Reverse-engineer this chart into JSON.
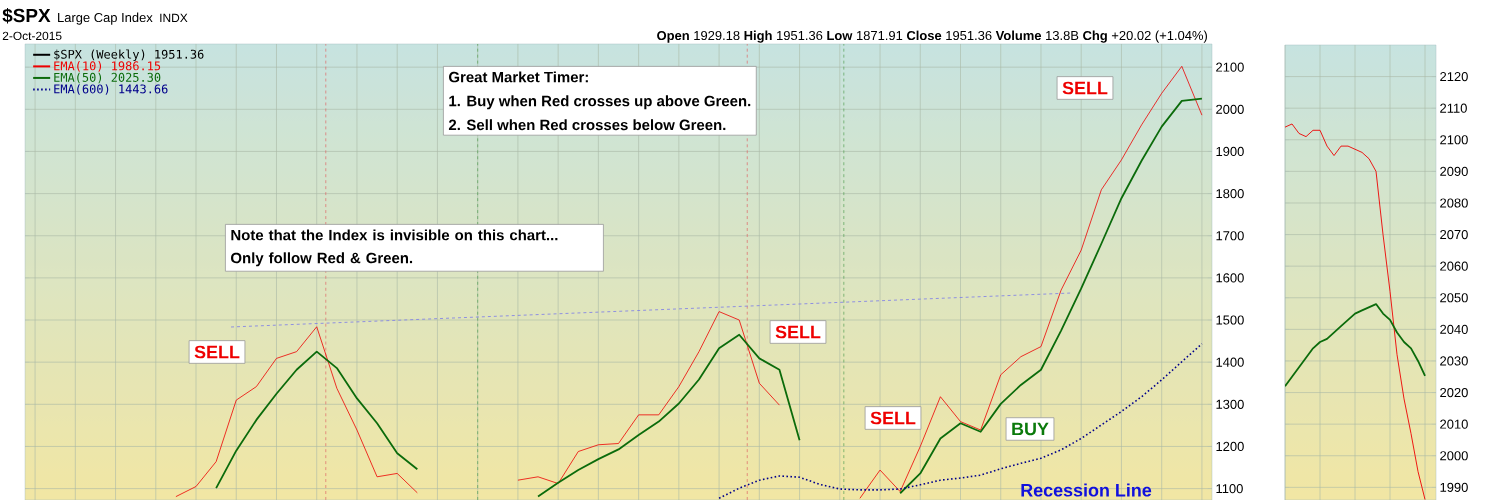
{
  "chart_data": [
    {
      "type": "line",
      "title": "$SPX",
      "subtitle": "Large Cap Index",
      "categories": [
        null,
        null,
        null,
        null,
        null,
        null,
        null,
        null,
        null,
        null,
        null,
        null,
        null,
        null,
        null,
        null,
        null,
        null,
        null,
        null,
        null,
        null,
        null,
        null,
        null,
        null,
        null,
        null,
        null,
        null,
        null,
        null,
        null,
        null,
        null,
        null,
        null,
        null,
        null,
        null,
        null,
        null,
        null,
        null,
        null,
        null,
        null,
        null,
        null,
        null,
        null,
        null,
        null,
        null,
        null,
        null,
        null,
        null,
        null
      ],
      "series": [
        {
          "name": "EMA(10) 1986.15",
          "color": "#ee0000",
          "values": [
            null,
            null,
            null,
            null,
            null,
            null,
            null,
            1081,
            1105,
            1164,
            1310,
            1342,
            1409,
            1425,
            1484,
            1338,
            1239,
            1128,
            1136,
            1090,
            null,
            null,
            null,
            null,
            1120,
            1128,
            1112,
            1188,
            1204,
            1207,
            1275,
            1275,
            1342,
            1425,
            1520,
            1500,
            1350,
            1298,
            null,
            null,
            null,
            1077,
            1144,
            1093,
            1200,
            1318,
            1259,
            1239,
            1370,
            1413,
            1437,
            1571,
            1666,
            1809,
            1880,
            1963,
            2038,
            2102,
            1986.15
          ]
        },
        {
          "name": "EMA(50) 2025.30",
          "color": "#0b6b0b",
          "values": [
            null,
            null,
            null,
            null,
            null,
            null,
            null,
            null,
            null,
            1101,
            1190,
            1263,
            1325,
            1382,
            1425,
            1386,
            1314,
            1255,
            1184,
            1146,
            null,
            null,
            null,
            null,
            null,
            1081,
            1114,
            1144,
            1170,
            1193,
            1227,
            1259,
            1302,
            1359,
            1433,
            1465,
            1409,
            1382,
            1215,
            null,
            null,
            null,
            null,
            1089,
            1136,
            1219,
            1255,
            1235,
            1301,
            1346,
            1382,
            1475,
            1575,
            1681,
            1789,
            1878,
            1959,
            2020,
            2025.3
          ]
        },
        {
          "name": "EMA(600) 1443.66",
          "color": "#00008b",
          "line_style": "dotted",
          "values": [
            null,
            null,
            null,
            null,
            null,
            null,
            null,
            null,
            null,
            null,
            null,
            null,
            null,
            null,
            null,
            null,
            null,
            null,
            null,
            null,
            null,
            null,
            null,
            null,
            null,
            null,
            null,
            null,
            null,
            null,
            null,
            null,
            null,
            null,
            1077,
            1101,
            1120,
            1130,
            1127,
            1110,
            1099,
            1097,
            1097,
            1099,
            1109,
            1120,
            1125,
            1132,
            1147,
            1160,
            1172,
            1192,
            1219,
            1251,
            1283,
            1318,
            1358,
            1401,
            1443.66
          ]
        }
      ],
      "ylim": [
        1073,
        2155
      ],
      "yticks": [
        1100,
        1200,
        1300,
        1400,
        1500,
        1600,
        1700,
        1800,
        1900,
        2000,
        2100
      ],
      "grid": true,
      "legend": "top left",
      "legend_title": "$SPX (Weekly) 1951.36",
      "tick_labels": "y",
      "annotations": [
        "INDX",
        "2-Oct-2015",
        "**Open** 1929.18 **High** 1951.36 **Low** 1871.91 **Close** 1951.36 **Volume** 13.8B **Chg** +20.02 (+1.04%)",
        "Great Market Timer:",
        "1. Buy when Red crosses up above Green.",
        "2. Sell when Red crosses below Green.",
        "Note that the Index is invisible on this chart... Only follow Red & Green.",
        "SELL",
        "SELL",
        "SELL",
        "SELL",
        "BUY",
        "Recession Line"
      ]
    },
    {
      "type": "line",
      "categories": [
        null,
        null,
        null,
        null,
        null,
        null,
        null,
        null,
        null,
        null,
        null,
        null,
        null,
        null,
        null,
        null,
        null,
        null,
        null,
        null,
        null
      ],
      "series": [
        {
          "color": "#ee0000",
          "values": [
            2104,
            2105,
            2102,
            2101,
            2103,
            2103,
            2098,
            2095,
            2098,
            2098,
            2097,
            2096,
            2094,
            2090,
            2070,
            2052,
            2032,
            2018,
            2007,
            1995,
            1986.15
          ]
        },
        {
          "color": "#0b6b0b",
          "values": [
            2022,
            2025,
            2028,
            2031,
            2034,
            2036,
            2037,
            2039,
            2041,
            2043,
            2045,
            2046,
            2047,
            2048,
            2045,
            2043,
            2039,
            2036,
            2034,
            2030,
            2025.3
          ]
        }
      ],
      "ylim": [
        1986,
        2130
      ],
      "yticks": [
        1990,
        2000,
        2010,
        2020,
        2030,
        2040,
        2050,
        2060,
        2070,
        2080,
        2090,
        2100,
        2110,
        2120
      ],
      "grid": true,
      "tick_labels": "y"
    }
  ]
}
